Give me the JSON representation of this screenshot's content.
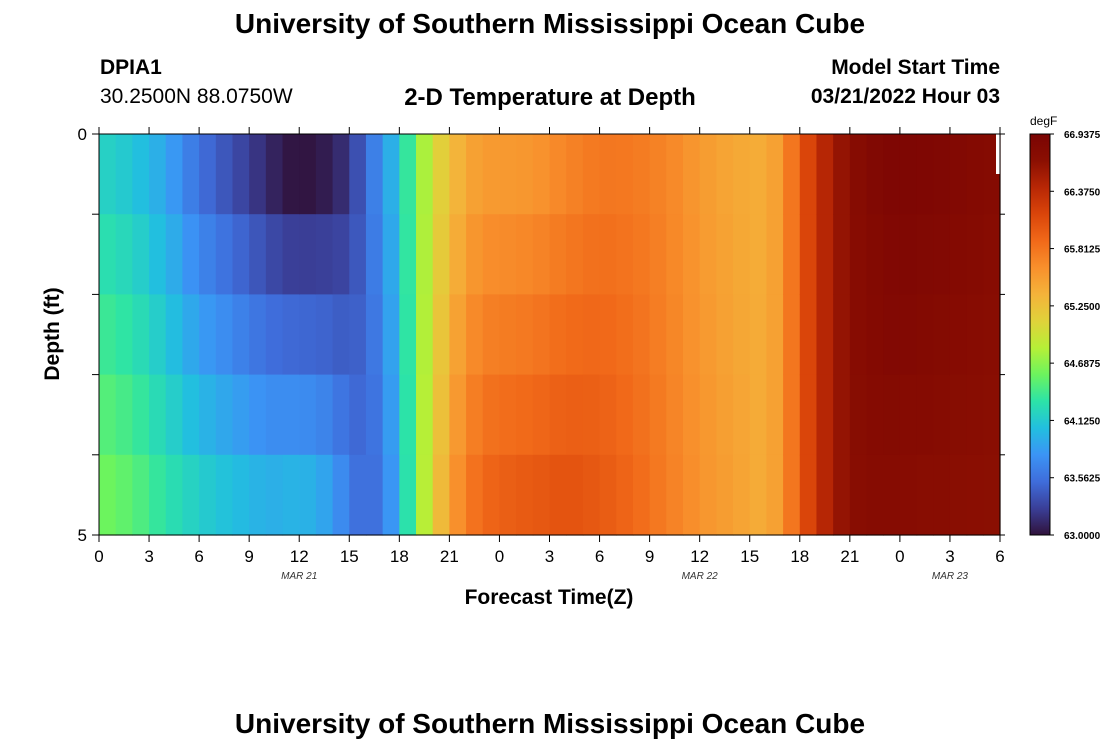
{
  "header": {
    "title": "University of Southern Mississippi Ocean Cube",
    "footer_title": "University of Southern Mississippi Ocean Cube",
    "station_id": "DPIA1",
    "coordinates": "30.2500N  88.0750W",
    "subtitle": "2-D Temperature at Depth",
    "model_start_label": "Model Start Time",
    "model_start_value": "03/21/2022 Hour 03"
  },
  "chart_data": {
    "type": "heatmap",
    "title": "2-D Temperature at Depth",
    "xlabel": "Forecast Time(Z)",
    "ylabel": "Depth (ft)",
    "x_tick_labels": [
      "0",
      "3",
      "6",
      "9",
      "12",
      "15",
      "18",
      "21",
      "0",
      "3",
      "6",
      "9",
      "12",
      "15",
      "18",
      "21",
      "0",
      "3",
      "6"
    ],
    "x_hours": [
      0,
      3,
      6,
      9,
      12,
      15,
      18,
      21,
      24,
      27,
      30,
      33,
      36,
      39,
      42,
      45,
      48,
      51,
      54
    ],
    "xlim": [
      0,
      54
    ],
    "date_labels": [
      {
        "label": "MAR 21",
        "hour": 12
      },
      {
        "label": "MAR 22",
        "hour": 36
      },
      {
        "label": "MAR 23",
        "hour": 51
      }
    ],
    "y_tick_labels": [
      "0",
      "5"
    ],
    "ylim": [
      0,
      5
    ],
    "depth_levels": 5,
    "colorbar": {
      "unit": "degF",
      "min": 63.0,
      "max": 66.9375,
      "tick_labels": [
        "66.9375",
        "66.3750",
        "65.8125",
        "65.2500",
        "64.6875",
        "64.1250",
        "63.5625",
        "63.0000"
      ],
      "tick_values": [
        66.9375,
        66.375,
        65.8125,
        65.25,
        64.6875,
        64.125,
        63.5625,
        63.0
      ],
      "colors": [
        "#30123b",
        "#3a3f98",
        "#3f6ddb",
        "#3b94f5",
        "#22bfdf",
        "#2ce3a8",
        "#6cf45e",
        "#b6ef37",
        "#e0d23a",
        "#f4b33a",
        "#f8902c",
        "#f16919",
        "#da450a",
        "#b82705",
        "#8b0f02",
        "#7a0403"
      ]
    },
    "temperature_profile": {
      "hours": [
        0,
        2,
        4,
        6,
        8,
        10,
        11,
        12,
        14,
        15,
        16,
        17,
        18,
        19,
        20,
        21,
        22,
        23,
        24,
        26,
        28,
        30,
        32,
        34,
        36,
        38,
        40,
        41,
        42,
        43,
        44,
        45,
        46,
        47,
        48,
        50,
        52,
        54
      ],
      "surface": [
        64.2,
        64.1,
        63.9,
        63.55,
        63.35,
        63.15,
        63.05,
        63.0,
        63.08,
        63.22,
        63.5,
        63.8,
        64.1,
        64.6,
        65.0,
        65.25,
        65.45,
        65.55,
        65.55,
        65.58,
        65.7,
        65.8,
        65.78,
        65.7,
        65.55,
        65.45,
        65.4,
        65.6,
        66.0,
        66.3,
        66.55,
        66.7,
        66.8,
        66.85,
        66.88,
        66.85,
        66.8,
        66.75
      ],
      "bottom": [
        64.6,
        64.5,
        64.3,
        64.15,
        64.05,
        63.95,
        63.95,
        64.0,
        63.85,
        63.6,
        63.5,
        63.6,
        64.0,
        64.6,
        65.1,
        65.5,
        65.75,
        65.9,
        65.95,
        66.0,
        66.05,
        66.0,
        65.9,
        65.75,
        65.6,
        65.5,
        65.4,
        65.6,
        66.0,
        66.3,
        66.55,
        66.7,
        66.75,
        66.75,
        66.75,
        66.72,
        66.7,
        66.68
      ]
    }
  }
}
